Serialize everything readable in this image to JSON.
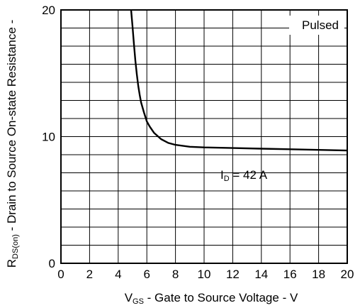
{
  "chart_data": {
    "type": "line",
    "xlabel_main": "V",
    "xlabel_sub": "GS",
    "xlabel_rest": " - Gate to Source Voltage - V",
    "ylabel_main": "R",
    "ylabel_sub": "DS(on)",
    "ylabel_rest": " - Drain to Source On-state Resistance -",
    "xlim": [
      0,
      20
    ],
    "ylim": [
      0,
      20
    ],
    "x_ticks": [
      "0",
      "2",
      "4",
      "6",
      "8",
      "10",
      "12",
      "14",
      "16",
      "18",
      "20"
    ],
    "y_ticks": [
      "0",
      "10",
      "20"
    ],
    "grid": true,
    "annotations": {
      "pulsed": "Pulsed",
      "id_main": "I",
      "id_sub": "D",
      "id_rest": " = 42 A"
    },
    "series": [
      {
        "x": [
          4.9,
          5.0,
          5.1,
          5.2,
          5.3,
          5.4,
          5.5,
          5.6,
          5.8,
          6.0,
          6.2,
          6.5,
          7.0,
          7.5,
          8.0,
          9.0,
          10.0,
          12.0,
          14.0,
          16.0,
          18.0,
          20.0
        ],
        "y": [
          20.0,
          18.7,
          17.3,
          16.0,
          14.9,
          14.0,
          13.3,
          12.7,
          11.9,
          11.2,
          10.8,
          10.3,
          9.8,
          9.5,
          9.35,
          9.2,
          9.15,
          9.1,
          9.05,
          9.0,
          8.95,
          8.9
        ]
      }
    ]
  }
}
